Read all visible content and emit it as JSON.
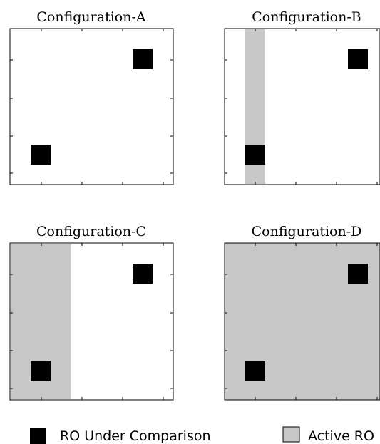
{
  "colors": {
    "ro_under_comparison": "#000000",
    "active_ro": "#c8c8c8",
    "background": "#ffffff",
    "frame": "#000000"
  },
  "panels": [
    {
      "title": "Configuration-A",
      "active_region": "none"
    },
    {
      "title": "Configuration-B",
      "active_region": "narrow-column"
    },
    {
      "title": "Configuration-C",
      "active_region": "left-column-block"
    },
    {
      "title": "Configuration-D",
      "active_region": "full"
    }
  ],
  "legend": {
    "ro_under_comparison": "RO Under Comparison",
    "active_ro": "Active RO"
  }
}
